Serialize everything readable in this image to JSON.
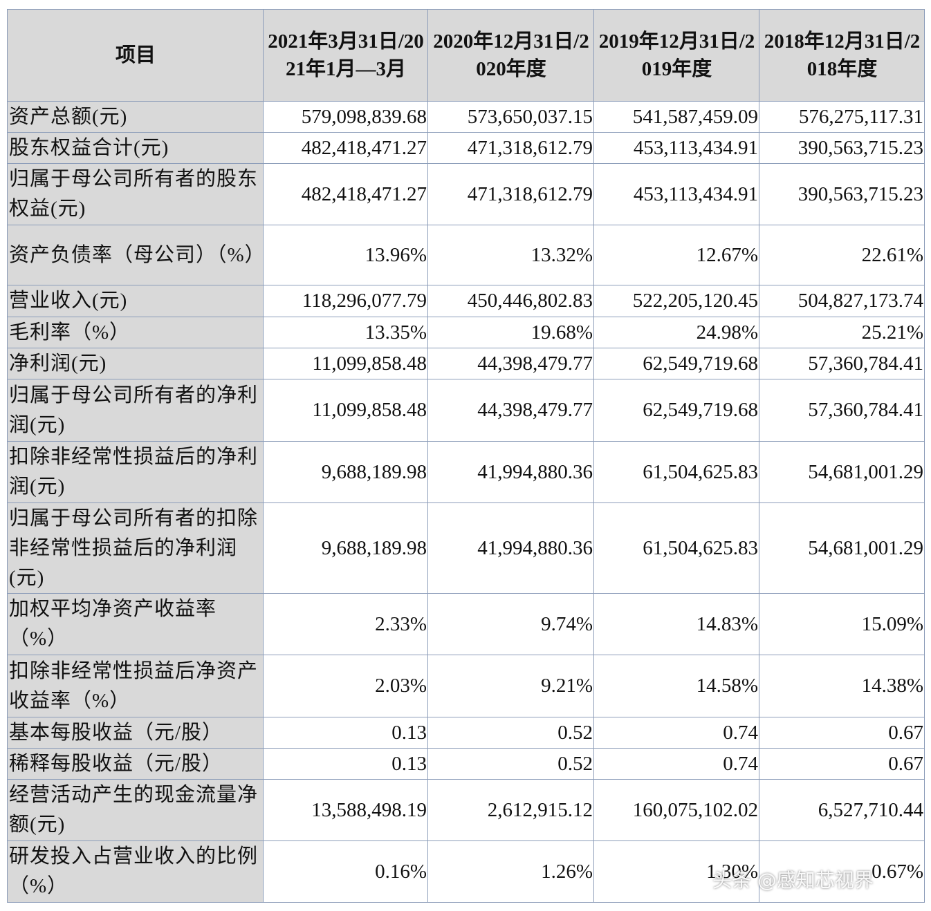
{
  "table": {
    "header": [
      "项目",
      "2021年3月31日/2021年1月—3月",
      "2020年12月31日/2020年度",
      "2019年12月31日/2019年度",
      "2018年12月31日/2018年度"
    ],
    "rows": [
      [
        "资产总额(元)",
        "579,098,839.68",
        "573,650,037.15",
        "541,587,459.09",
        "576,275,117.31"
      ],
      [
        "股东权益合计(元)",
        "482,418,471.27",
        "471,318,612.79",
        "453,113,434.91",
        "390,563,715.23"
      ],
      [
        "归属于母公司所有者的股东权益(元)",
        "482,418,471.27",
        "471,318,612.79",
        "453,113,434.91",
        "390,563,715.23"
      ],
      [
        "资产负债率（母公司）（%）",
        "13.96%",
        "13.32%",
        "12.67%",
        "22.61%"
      ],
      [
        "营业收入(元)",
        "118,296,077.79",
        "450,446,802.83",
        "522,205,120.45",
        "504,827,173.74"
      ],
      [
        "毛利率（%）",
        "13.35%",
        "19.68%",
        "24.98%",
        "25.21%"
      ],
      [
        "净利润(元)",
        "11,099,858.48",
        "44,398,479.77",
        "62,549,719.68",
        "57,360,784.41"
      ],
      [
        "归属于母公司所有者的净利润(元)",
        "11,099,858.48",
        "44,398,479.77",
        "62,549,719.68",
        "57,360,784.41"
      ],
      [
        "扣除非经常性损益后的净利润(元)",
        "9,688,189.98",
        "41,994,880.36",
        "61,504,625.83",
        "54,681,001.29"
      ],
      [
        "归属于母公司所有者的扣除非经常性损益后的净利润(元)",
        "9,688,189.98",
        "41,994,880.36",
        "61,504,625.83",
        "54,681,001.29"
      ],
      [
        "加权平均净资产收益率（%）",
        "2.33%",
        "9.74%",
        "14.83%",
        "15.09%"
      ],
      [
        "扣除非经常性损益后净资产收益率（%）",
        "2.03%",
        "9.21%",
        "14.58%",
        "14.38%"
      ],
      [
        "基本每股收益（元/股）",
        "0.13",
        "0.52",
        "0.74",
        "0.67"
      ],
      [
        "稀释每股收益（元/股）",
        "0.13",
        "0.52",
        "0.74",
        "0.67"
      ],
      [
        "经营活动产生的现金流量净额(元)",
        "13,588,498.19",
        "2,612,915.12",
        "160,075,102.02",
        "6,527,710.44"
      ],
      [
        "研发投入占营业收入的比例（%）",
        "0.16%",
        "1.26%",
        "1.30%",
        "0.67%"
      ]
    ]
  },
  "watermark": "头条 @感知芯视界"
}
